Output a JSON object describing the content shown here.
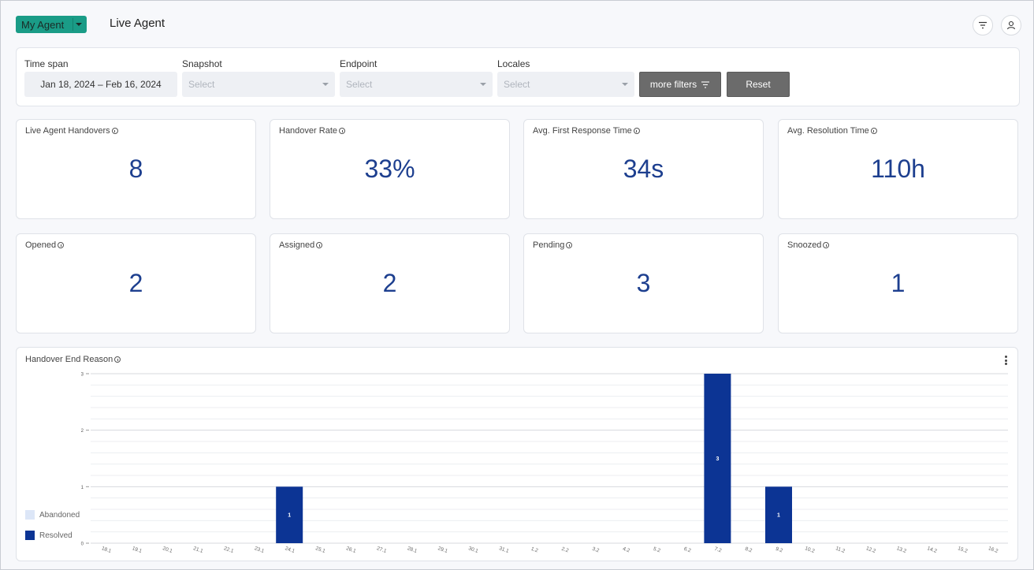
{
  "header": {
    "agent_select": "My Agent",
    "title": "Live Agent",
    "icons": [
      "filter-icon",
      "user-icon"
    ]
  },
  "filters": {
    "time_span": {
      "label": "Time span",
      "value": "Jan 18, 2024 – Feb 16, 2024"
    },
    "snapshot": {
      "label": "Snapshot",
      "placeholder": "Select"
    },
    "endpoint": {
      "label": "Endpoint",
      "placeholder": "Select"
    },
    "locales": {
      "label": "Locales",
      "placeholder": "Select"
    },
    "more_filters": "more filters",
    "reset": "Reset"
  },
  "kpis": [
    {
      "label": "Live Agent Handovers",
      "value": "8"
    },
    {
      "label": "Handover Rate",
      "value": "33%"
    },
    {
      "label": "Avg. First Response Time",
      "value": "34s"
    },
    {
      "label": "Avg. Resolution Time",
      "value": "110h"
    },
    {
      "label": "Opened",
      "value": "2"
    },
    {
      "label": "Assigned",
      "value": "2"
    },
    {
      "label": "Pending",
      "value": "3"
    },
    {
      "label": "Snoozed",
      "value": "1"
    }
  ],
  "chart_data": {
    "type": "bar",
    "title": "Handover End Reason",
    "categories": [
      "18.1",
      "19.1",
      "20.1",
      "21.1",
      "22.1",
      "23.1",
      "24.1",
      "25.1",
      "26.1",
      "27.1",
      "28.1",
      "29.1",
      "30.1",
      "31.1",
      "1.2",
      "2.2",
      "3.2",
      "4.2",
      "5.2",
      "6.2",
      "7.2",
      "8.2",
      "9.2",
      "10.2",
      "11.2",
      "12.2",
      "13.2",
      "14.2",
      "15.2",
      "16.2"
    ],
    "series": [
      {
        "name": "Abandoned",
        "color": "#dce6f7",
        "values": [
          0,
          0,
          0,
          0,
          0,
          0,
          0,
          0,
          0,
          0,
          0,
          0,
          0,
          0,
          0,
          0,
          0,
          0,
          0,
          0,
          0,
          0,
          0,
          0,
          0,
          0,
          0,
          0,
          0,
          0
        ]
      },
      {
        "name": "Resolved",
        "color": "#0c3494",
        "values": [
          0,
          0,
          0,
          0,
          0,
          0,
          1,
          0,
          0,
          0,
          0,
          0,
          0,
          0,
          0,
          0,
          0,
          0,
          0,
          0,
          3,
          0,
          1,
          0,
          0,
          0,
          0,
          0,
          0,
          0
        ]
      }
    ],
    "yticks": [
      "0",
      "1",
      "2",
      "3"
    ],
    "ylim": [
      0,
      3
    ],
    "stacked": true,
    "grid": true,
    "legend": "bottom-left"
  }
}
